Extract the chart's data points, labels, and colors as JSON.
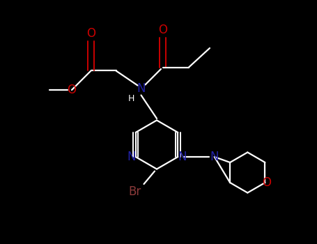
{
  "background_color": "#000000",
  "bond_color": "#ffffff",
  "oxygen_color": "#cc0000",
  "nitrogen_color": "#2222aa",
  "bromine_color": "#8b3a3a",
  "figsize": [
    4.55,
    3.5
  ],
  "dpi": 100,
  "xlim": [
    0,
    9.1
  ],
  "ylim": [
    0,
    7.0
  ]
}
